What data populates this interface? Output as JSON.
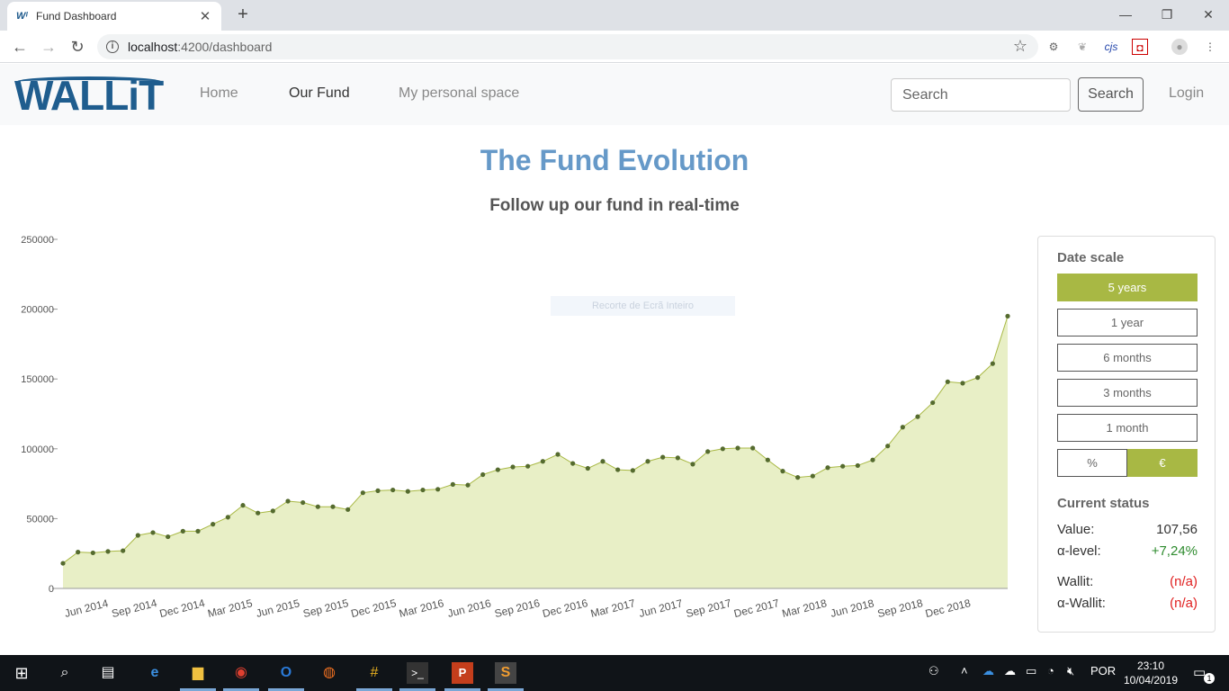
{
  "browser": {
    "tab_title": "Fund Dashboard",
    "tab_favicon": "Wᴵ",
    "url_host": "localhost",
    "url_path": ":4200/dashboard"
  },
  "navbar": {
    "logo": "WALLiT",
    "links": [
      "Home",
      "Our Fund",
      "My personal space"
    ],
    "active_link": "Our Fund",
    "search_placeholder": "Search",
    "search_button": "Search",
    "login": "Login"
  },
  "page": {
    "title": "The Fund Evolution",
    "subtitle": "Follow up our fund in real-time",
    "overlay_text": "Recorte de Ecrã Inteiro"
  },
  "chart_data": {
    "type": "area",
    "color": "#a8b844",
    "fill": "#e8efc6",
    "y_ticks": [
      0,
      50000,
      100000,
      150000,
      200000,
      250000
    ],
    "ylim": [
      0,
      250000
    ],
    "x_tick_labels": [
      "Jun 2014",
      "Sep 2014",
      "Dec 2014",
      "Mar 2015",
      "Jun 2015",
      "Sep 2015",
      "Dec 2015",
      "Mar 2016",
      "Jun 2016",
      "Sep 2016",
      "Dec 2016",
      "Mar 2017",
      "Jun 2017",
      "Sep 2017",
      "Dec 2017",
      "Mar 2018",
      "Jun 2018",
      "Sep 2018",
      "Dec 2018"
    ],
    "values": [
      18000,
      26000,
      25500,
      26500,
      27000,
      38000,
      40000,
      37000,
      41000,
      41000,
      46000,
      51000,
      59500,
      54000,
      55500,
      62500,
      61500,
      58500,
      58500,
      56500,
      68500,
      70000,
      70500,
      69500,
      70500,
      71000,
      74500,
      74000,
      81500,
      85000,
      87000,
      87500,
      91000,
      96000,
      89500,
      86000,
      91000,
      85000,
      84500,
      91000,
      94000,
      93500,
      89000,
      98000,
      100000,
      100500,
      100500,
      92000,
      84000,
      79500,
      80500,
      86500,
      87500,
      88000,
      92000,
      102000,
      115500,
      123000,
      133000,
      148000,
      147000,
      151000,
      161000,
      195000
    ],
    "title": "",
    "xlabel": "",
    "ylabel": "",
    "grid": false,
    "legend": "none"
  },
  "panel": {
    "date_scale_heading": "Date scale",
    "ranges": [
      "5 years",
      "1 year",
      "6 months",
      "3 months",
      "1 month"
    ],
    "selected_range": "5 years",
    "units": [
      "%",
      "€"
    ],
    "selected_unit": "€",
    "status_heading": "Current status",
    "value_label": "Value:",
    "value": "107,56",
    "alpha_label": "α-level:",
    "alpha": "+7,24%",
    "wallit_label": "Wallit:",
    "wallit": "(n/a)",
    "alpha_wallit_label": "α-Wallit:",
    "alpha_wallit": "(n/a)"
  },
  "taskbar": {
    "language": "POR",
    "time": "23:10",
    "date": "10/04/2019",
    "notifications": "1"
  }
}
